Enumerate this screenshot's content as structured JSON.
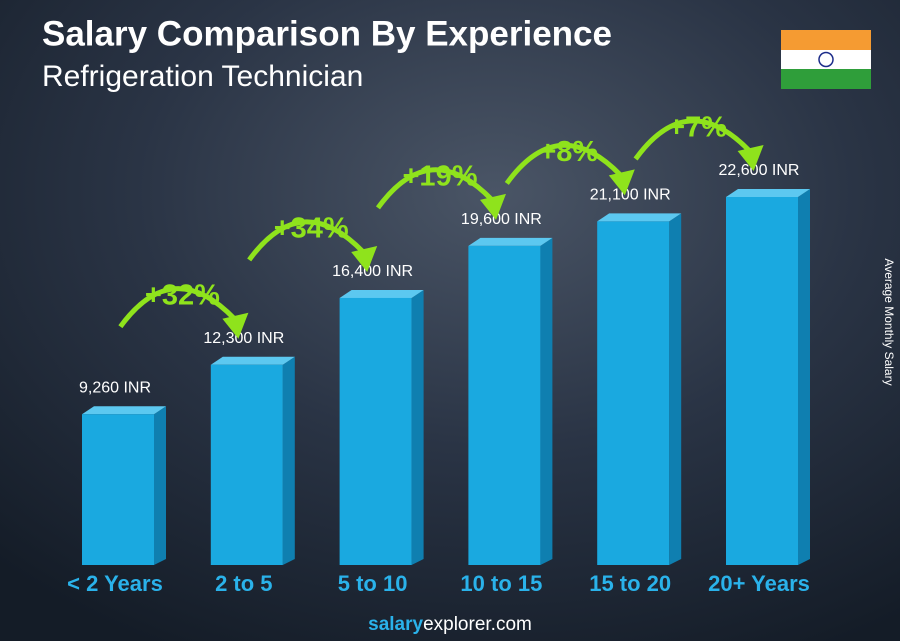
{
  "chart_data": {
    "type": "bar",
    "title": "Salary Comparison By Experience",
    "subtitle": "Refrigeration Technician",
    "y_axis_label": "Average Monthly Salary",
    "categories": [
      "< 2 Years",
      "2 to 5",
      "5 to 10",
      "10 to 15",
      "15 to 20",
      "20+ Years"
    ],
    "values": [
      9260,
      12300,
      16400,
      19600,
      21100,
      22600
    ],
    "value_labels": [
      "9,260 INR",
      "12,300 INR",
      "16,400 INR",
      "19,600 INR",
      "21,100 INR",
      "22,600 INR"
    ],
    "increases": [
      32,
      34,
      19,
      8,
      7
    ],
    "increase_labels": [
      "+32%",
      "+34%",
      "+19%",
      "+8%",
      "+7%"
    ],
    "color": "#1aa9e0",
    "increase_color": "#8fe31c",
    "source_brand": "salary",
    "source_domain": "explorer.com"
  }
}
